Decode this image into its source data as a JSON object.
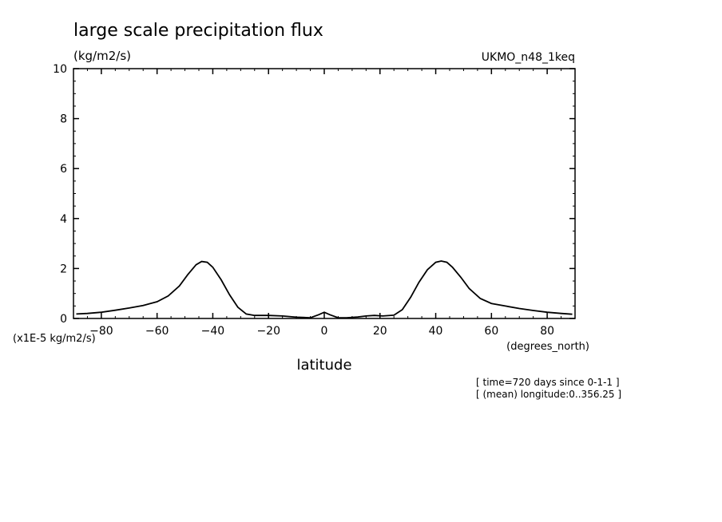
{
  "chart_data": {
    "type": "line",
    "title": "large scale precipitation flux",
    "units_label": "(kg/m2/s)",
    "dataset": "UKMO_n48_1keq",
    "xlabel": "latitude",
    "x_units": "(degrees_north)",
    "y_scale_note": "(x1E-5 kg/m2/s)",
    "info_lines": [
      "[ time=720 days since 0-1-1 ]",
      "[ (mean) longitude:0..356.25 ]"
    ],
    "xlim": [
      -90,
      90
    ],
    "ylim": [
      0,
      10
    ],
    "x_ticks": [
      -80,
      -60,
      -40,
      -20,
      0,
      20,
      40,
      60,
      80
    ],
    "y_ticks": [
      0,
      2,
      4,
      6,
      8,
      10
    ],
    "grid": false,
    "series": [
      {
        "x": [
          -89,
          -85,
          -80,
          -75,
          -70,
          -65,
          -60,
          -56,
          -52,
          -49,
          -46,
          -44,
          -42,
          -40,
          -37,
          -34,
          -31,
          -28,
          -25,
          -20,
          -15,
          -10,
          -5,
          -2,
          0,
          2,
          5,
          8,
          12,
          15,
          18,
          21,
          25,
          28,
          31,
          34,
          37,
          40,
          42,
          44,
          46,
          49,
          52,
          56,
          60,
          65,
          70,
          75,
          80,
          85,
          89
        ],
        "y": [
          0.18,
          0.2,
          0.25,
          0.33,
          0.42,
          0.52,
          0.67,
          0.9,
          1.3,
          1.75,
          2.15,
          2.28,
          2.25,
          2.05,
          1.55,
          0.95,
          0.45,
          0.18,
          0.12,
          0.12,
          0.1,
          0.05,
          0.03,
          0.15,
          0.25,
          0.15,
          0.03,
          0.03,
          0.06,
          0.1,
          0.12,
          0.1,
          0.13,
          0.35,
          0.85,
          1.45,
          1.95,
          2.25,
          2.3,
          2.25,
          2.05,
          1.65,
          1.2,
          0.8,
          0.6,
          0.5,
          0.4,
          0.32,
          0.25,
          0.2,
          0.17
        ]
      }
    ]
  }
}
